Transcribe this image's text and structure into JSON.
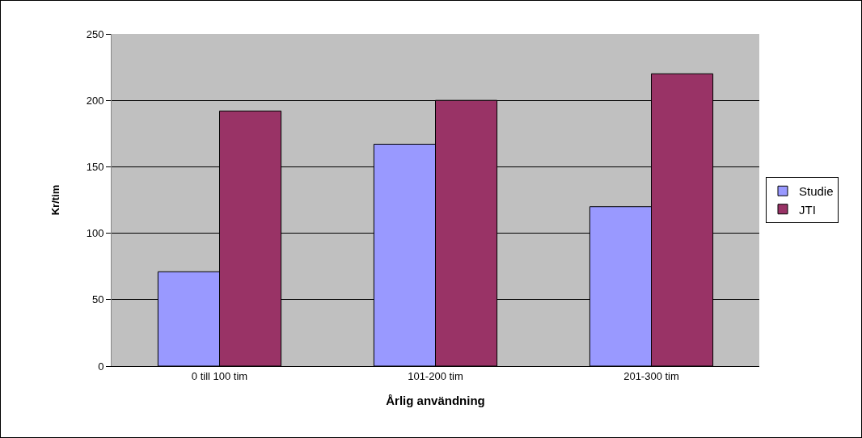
{
  "chart_data": {
    "type": "bar",
    "xlabel": "Årlig användning",
    "ylabel": "Kr/tim",
    "categories": [
      "0 till 100 tim",
      "101-200 tim",
      "201-300 tim"
    ],
    "series": [
      {
        "name": "Studie",
        "color": "#9999ff",
        "values": [
          71,
          167,
          120
        ]
      },
      {
        "name": "JTI",
        "color": "#993366",
        "values": [
          192,
          200,
          220
        ]
      }
    ],
    "ylim": [
      0,
      250
    ],
    "yticks": [
      0,
      50,
      100,
      150,
      200,
      250
    ],
    "grid": "y",
    "legend": "right"
  }
}
